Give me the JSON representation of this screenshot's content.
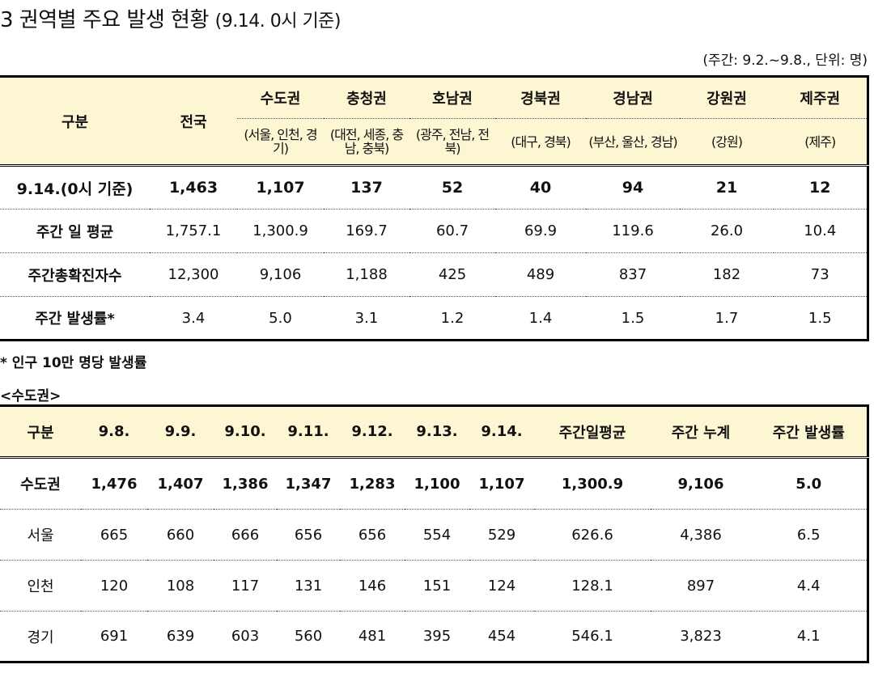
{
  "section": {
    "title": "3  권역별 주요 발생 현황",
    "title_sub": "(9.14. 0시 기준)",
    "unit_note": "(주간: 9.2.~9.8., 단위: 명)",
    "footnote": "* 인구 10만 명당 발생률",
    "subtitle": "<수도권>"
  },
  "table1": {
    "corner_label": "구분",
    "national_label": "전국",
    "regions": [
      {
        "name": "수도권",
        "desc": "(서울, 인천, 경기)"
      },
      {
        "name": "충청권",
        "desc": "(대전, 세종, 충남, 충북)"
      },
      {
        "name": "호남권",
        "desc": "(광주, 전남, 전북)"
      },
      {
        "name": "경북권",
        "desc": "(대구, 경북)"
      },
      {
        "name": "경남권",
        "desc": "(부산, 울산, 경남)"
      },
      {
        "name": "강원권",
        "desc": "(강원)"
      },
      {
        "name": "제주권",
        "desc": "(제주)"
      }
    ],
    "rows": [
      {
        "label": "9.14.(0시 기준)",
        "values": [
          "1,463",
          "1,107",
          "137",
          "52",
          "40",
          "94",
          "21",
          "12"
        ]
      },
      {
        "label": "주간 일 평균",
        "values": [
          "1,757.1",
          "1,300.9",
          "169.7",
          "60.7",
          "69.9",
          "119.6",
          "26.0",
          "10.4"
        ]
      },
      {
        "label": "주간총확진자수",
        "values": [
          "12,300",
          "9,106",
          "1,188",
          "425",
          "489",
          "837",
          "182",
          "73"
        ]
      },
      {
        "label": "주간 발생률*",
        "values": [
          "3.4",
          "5.0",
          "3.1",
          "1.2",
          "1.4",
          "1.5",
          "1.7",
          "1.5"
        ]
      }
    ]
  },
  "table2": {
    "headers": [
      "구분",
      "9.8.",
      "9.9.",
      "9.10.",
      "9.11.",
      "9.12.",
      "9.13.",
      "9.14.",
      "주간일평균",
      "주간 누계",
      "주간 발생률"
    ],
    "rows": [
      {
        "cells": [
          "수도권",
          "1,476",
          "1,407",
          "1,386",
          "1,347",
          "1,283",
          "1,100",
          "1,107",
          "1,300.9",
          "9,106",
          "5.0"
        ]
      },
      {
        "cells": [
          "서울",
          "665",
          "660",
          "666",
          "656",
          "656",
          "554",
          "529",
          "626.6",
          "4,386",
          "6.5"
        ]
      },
      {
        "cells": [
          "인천",
          "120",
          "108",
          "117",
          "131",
          "146",
          "151",
          "124",
          "128.1",
          "897",
          "4.4"
        ]
      },
      {
        "cells": [
          "경기",
          "691",
          "639",
          "603",
          "560",
          "481",
          "395",
          "454",
          "546.1",
          "3,823",
          "4.1"
        ]
      }
    ]
  }
}
